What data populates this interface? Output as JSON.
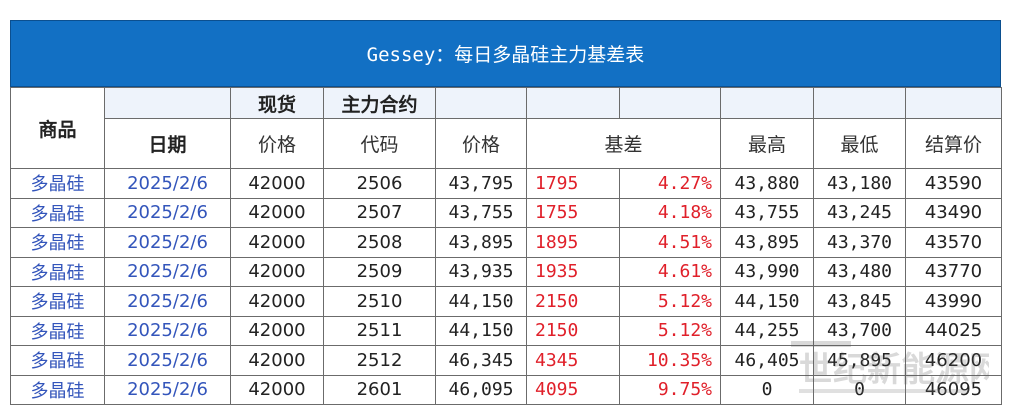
{
  "title": "Gessey：每日多晶硅主力基差表",
  "headers": {
    "product": "商品",
    "date": "日期",
    "spot_group": "现货",
    "main_group": "主力合约",
    "spot_price": "价格",
    "code": "代码",
    "price": "价格",
    "basis": "基差",
    "high": "最高",
    "low": "最低",
    "settle": "结算价"
  },
  "rows": [
    {
      "product": "多晶硅",
      "date": "2025/2/6",
      "spot": "42000",
      "code": "2506",
      "price": "43,795",
      "basis": "1795",
      "basis_pct": "4.27%",
      "high": "43,880",
      "low": "43,180",
      "settle": "43590"
    },
    {
      "product": "多晶硅",
      "date": "2025/2/6",
      "spot": "42000",
      "code": "2507",
      "price": "43,755",
      "basis": "1755",
      "basis_pct": "4.18%",
      "high": "43,755",
      "low": "43,245",
      "settle": "43490"
    },
    {
      "product": "多晶硅",
      "date": "2025/2/6",
      "spot": "42000",
      "code": "2508",
      "price": "43,895",
      "basis": "1895",
      "basis_pct": "4.51%",
      "high": "43,895",
      "low": "43,370",
      "settle": "43570"
    },
    {
      "product": "多晶硅",
      "date": "2025/2/6",
      "spot": "42000",
      "code": "2509",
      "price": "43,935",
      "basis": "1935",
      "basis_pct": "4.61%",
      "high": "43,990",
      "low": "43,480",
      "settle": "43770"
    },
    {
      "product": "多晶硅",
      "date": "2025/2/6",
      "spot": "42000",
      "code": "2510",
      "price": "44,150",
      "basis": "2150",
      "basis_pct": "5.12%",
      "high": "44,150",
      "low": "43,845",
      "settle": "43990"
    },
    {
      "product": "多晶硅",
      "date": "2025/2/6",
      "spot": "42000",
      "code": "2511",
      "price": "44,150",
      "basis": "2150",
      "basis_pct": "5.12%",
      "high": "44,255",
      "low": "43,700",
      "settle": "44025"
    },
    {
      "product": "多晶硅",
      "date": "2025/2/6",
      "spot": "42000",
      "code": "2512",
      "price": "46,345",
      "basis": "4345",
      "basis_pct": "10.35%",
      "high": "46,405",
      "low": "45,895",
      "settle": "46200"
    },
    {
      "product": "多晶硅",
      "date": "2025/2/6",
      "spot": "42000",
      "code": "2601",
      "price": "46,095",
      "basis": "4095",
      "basis_pct": "9.75%",
      "high": "0",
      "low": "0",
      "settle": "46095"
    }
  ],
  "colors": {
    "banner": "#1270c4",
    "link": "#3355bb",
    "basis": "#e0202a"
  }
}
